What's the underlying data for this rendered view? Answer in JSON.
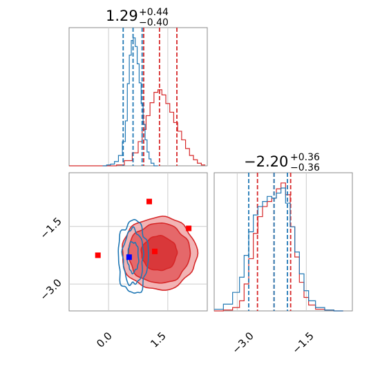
{
  "colors": {
    "red": "#d62728",
    "red_fill_light": "#f2b3b4",
    "red_fill_mid": "#e5686a",
    "red_fill_dark": "#d9383a",
    "blue": "#1f77b4",
    "blue_marker": "#0000ff",
    "red_marker": "#ff0000",
    "grid": "#cccccc",
    "frame": "#888888"
  },
  "chart_data": [
    {
      "type": "histogram",
      "panel": "param-1-marginal",
      "title_main": "1.29",
      "title_plus": "+0.44",
      "title_minus": "−0.40",
      "xlim": [
        -1.0,
        2.5
      ],
      "grid": true,
      "gridlines_x": [
        0.0,
        1.5
      ],
      "series": [
        {
          "color": "red",
          "x": [
            -0.9,
            -0.7,
            -0.5,
            -0.3,
            -0.1,
            0.1,
            0.3,
            0.5,
            0.7,
            0.8,
            0.9,
            1.0,
            1.1,
            1.2,
            1.3,
            1.4,
            1.5,
            1.6,
            1.7,
            1.8,
            1.9,
            2.0,
            2.1,
            2.2,
            2.3,
            2.4
          ],
          "counts": [
            0,
            0,
            0,
            0,
            0,
            0,
            1,
            6,
            15,
            28,
            42,
            58,
            73,
            85,
            88,
            82,
            72,
            62,
            50,
            40,
            30,
            20,
            12,
            7,
            3,
            1
          ],
          "quantile_lines": [
            0.89,
            1.29,
            1.73
          ]
        },
        {
          "color": "blue",
          "x": [
            -0.1,
            0.0,
            0.1,
            0.2,
            0.3,
            0.4,
            0.45,
            0.5,
            0.55,
            0.6,
            0.65,
            0.7,
            0.75,
            0.8,
            0.85,
            0.9,
            0.95,
            1.0,
            1.05,
            1.1,
            1.2
          ],
          "counts": [
            0,
            1,
            2,
            5,
            12,
            28,
            52,
            95,
            128,
            145,
            148,
            138,
            118,
            96,
            72,
            48,
            30,
            16,
            8,
            3,
            0
          ],
          "quantile_lines": [
            0.37,
            0.62,
            0.85
          ]
        }
      ]
    },
    {
      "type": "contour2d",
      "panel": "joint",
      "xlim": [
        -1.0,
        2.5
      ],
      "ylim": [
        -3.7,
        -0.1
      ],
      "grid": true,
      "gridlines_x": [
        0.0,
        1.5
      ],
      "gridlines_y": [
        -1.5,
        -3.0
      ],
      "red_contours": [
        {
          "cx": 1.28,
          "cy": -2.2,
          "rx": 0.95,
          "ry": 0.95,
          "level": "outer"
        },
        {
          "cx": 1.28,
          "cy": -2.2,
          "rx": 0.78,
          "ry": 0.78,
          "level": "middle"
        },
        {
          "cx": 1.28,
          "cy": -2.2,
          "rx": 0.45,
          "ry": 0.45,
          "level": "inner"
        }
      ],
      "blue_contours": [
        {
          "cx": 0.62,
          "cy": -2.3,
          "rx": 0.38,
          "ry": 0.95,
          "level": "outer"
        },
        {
          "cx": 0.62,
          "cy": -2.3,
          "rx": 0.26,
          "ry": 0.72,
          "level": "middle"
        },
        {
          "cx": 0.62,
          "cy": -2.3,
          "rx": 0.14,
          "ry": 0.4,
          "level": "inner"
        }
      ],
      "markers": [
        {
          "color": "red",
          "x": 1.03,
          "y": -0.85
        },
        {
          "color": "red",
          "x": 2.03,
          "y": -1.55
        },
        {
          "color": "red",
          "x": 1.17,
          "y": -2.15
        },
        {
          "color": "red",
          "x": -0.27,
          "y": -2.25
        },
        {
          "color": "blue",
          "x": 0.52,
          "y": -2.3
        }
      ],
      "x_ticks": [
        "0.0",
        "1.5"
      ],
      "y_ticks": [
        "−1.5",
        "−3.0"
      ]
    },
    {
      "type": "histogram",
      "panel": "param-2-marginal",
      "title_main": "−2.20",
      "title_plus": "+0.36",
      "title_minus": "−0.36",
      "xlim": [
        -3.5,
        -0.5
      ],
      "grid": true,
      "gridlines_x": [
        -3.0,
        -1.5
      ],
      "x_ticks": [
        "−3.0",
        "−1.5"
      ],
      "series": [
        {
          "color": "red",
          "x": [
            -3.4,
            -3.2,
            -3.0,
            -2.9,
            -2.8,
            -2.7,
            -2.6,
            -2.5,
            -2.4,
            -2.3,
            -2.2,
            -2.1,
            -2.0,
            -1.9,
            -1.8,
            -1.7,
            -1.6,
            -1.5,
            -1.4,
            -1.2,
            -1.0,
            -0.8
          ],
          "counts": [
            0,
            1,
            4,
            12,
            32,
            62,
            92,
            112,
            124,
            130,
            134,
            145,
            152,
            138,
            100,
            64,
            34,
            16,
            7,
            2,
            1,
            0
          ],
          "quantile_lines": [
            -2.56,
            -2.2,
            -1.84
          ]
        },
        {
          "color": "blue",
          "x": [
            -3.4,
            -3.2,
            -3.0,
            -2.9,
            -2.8,
            -2.7,
            -2.6,
            -2.5,
            -2.4,
            -2.3,
            -2.2,
            -2.1,
            -2.0,
            -1.9,
            -1.8,
            -1.7,
            -1.6,
            -1.5,
            -1.4,
            -1.2,
            -1.0,
            -0.8
          ],
          "counts": [
            2,
            8,
            22,
            40,
            66,
            94,
            114,
            124,
            130,
            136,
            134,
            140,
            146,
            128,
            100,
            70,
            44,
            24,
            12,
            4,
            1,
            0
          ],
          "quantile_lines": [
            -2.75,
            -2.2,
            -1.91
          ]
        }
      ]
    }
  ]
}
